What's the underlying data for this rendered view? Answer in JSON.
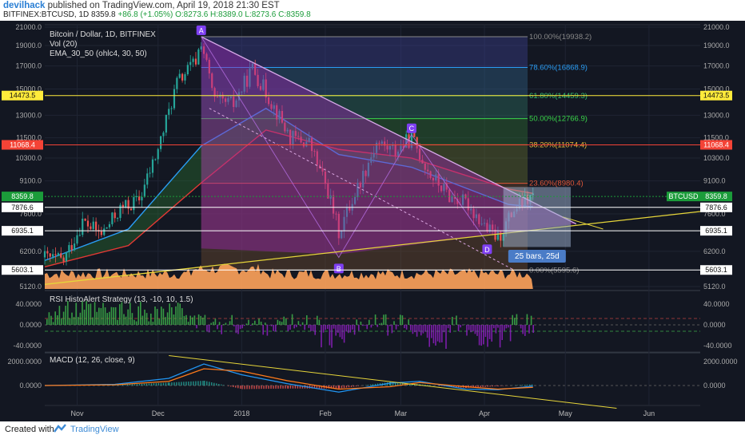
{
  "header": {
    "author": "devilhack",
    "published": "published on TradingView.com, April 19, 2018 21:30 EST",
    "symbol_line": "BITFINEX:BTCUSD, 1D 8359.8",
    "change": "+86.8 (+1.05%)",
    "ohlc": "O:8273.6 H:8389.0 L:8273.6 C:8359.8"
  },
  "legend": {
    "title": "Bitcoin / Dollar, 1D, BITFINEX",
    "vol": "Vol (20)",
    "ema": "EMA_30_50 (ohlc4, 30, 50)",
    "rsi": "RSI HistoAlert Strategy (13, -10, 10, 1.5)",
    "macd": "MACD (12, 26, close, 9)"
  },
  "footer": {
    "created_with": "Created with",
    "brand": "TradingView"
  },
  "colors": {
    "background": "#131722",
    "bull": "#26a69a",
    "bear": "#ef5350",
    "triangle_fill": "#9c27b0",
    "trendline": "#e6d53a",
    "volume": "#ffa35b",
    "ema_fast": "#2a9df4",
    "ema_slow": "#e53935",
    "macd_line": "#2196f3",
    "signal_line": "#ff7a1a",
    "last_price": "#1b9c3a"
  },
  "chart_data": [
    {
      "type": "candlestick",
      "title": "Bitcoin / Dollar, 1D, BITFINEX",
      "symbol": "BTCUSD",
      "x": [
        "Nov",
        "Dec",
        "2018",
        "Feb",
        "Mar",
        "Apr",
        "May",
        "Jun"
      ],
      "y_ticks": [
        21000,
        19000,
        17000,
        15000,
        13000,
        11500,
        10300,
        9100,
        7600,
        6200,
        5120
      ],
      "ylim": [
        5120,
        21000
      ],
      "y_scale": "log",
      "price_series": {
        "dates": [
          "2017-10-20",
          "2017-10-27",
          "2017-11-03",
          "2017-11-10",
          "2017-11-17",
          "2017-11-24",
          "2017-12-01",
          "2017-12-08",
          "2017-12-15",
          "2017-12-17",
          "2017-12-22",
          "2017-12-29",
          "2018-01-05",
          "2018-01-12",
          "2018-01-19",
          "2018-01-26",
          "2018-02-02",
          "2018-02-06",
          "2018-02-13",
          "2018-02-20",
          "2018-02-27",
          "2018-03-05",
          "2018-03-12",
          "2018-03-19",
          "2018-03-26",
          "2018-04-02",
          "2018-04-06",
          "2018-04-12",
          "2018-04-19"
        ],
        "close": [
          6000,
          5900,
          7300,
          6800,
          7800,
          8200,
          10800,
          15500,
          17500,
          19500,
          14000,
          13800,
          16800,
          14000,
          11500,
          11200,
          8600,
          6900,
          8800,
          11200,
          10700,
          11500,
          9400,
          8400,
          8000,
          7000,
          6650,
          7800,
          8359.8
        ]
      },
      "horizontal_levels": [
        {
          "label": "14473.5",
          "value": 14473.5,
          "color": "#ffeb3b"
        },
        {
          "label": "11068.4",
          "value": 11068.4,
          "color": "#f44336"
        },
        {
          "label": "8359.8",
          "value": 8359.8,
          "color": "#1b9c3a"
        },
        {
          "label": "7876.6",
          "value": 7876.6,
          "color": "#ffffff"
        },
        {
          "label": "6935.1",
          "value": 6935.1,
          "color": "#ffffff"
        },
        {
          "label": "5603.1",
          "value": 5603.1,
          "color": "#ffffff"
        }
      ],
      "fibonacci": [
        {
          "label": "100.00%(19938.2)",
          "value": 19938.2
        },
        {
          "label": "78.60%(16868.9)",
          "value": 16868.9
        },
        {
          "label": "61.80%(14459.3)",
          "value": 14459.3
        },
        {
          "label": "50.00%(12766.9)",
          "value": 12766.9
        },
        {
          "label": "38.20%(11074.4)",
          "value": 11074.4
        },
        {
          "label": "23.60%(8980.4)",
          "value": 8980.4
        },
        {
          "label": "0.00%(5595.6)",
          "value": 5595.6
        }
      ],
      "points": [
        {
          "label": "A",
          "date": "2017-12-17",
          "value": 19938.2
        },
        {
          "label": "B",
          "date": "2018-02-06",
          "value": 5900
        },
        {
          "label": "C",
          "date": "2018-03-05",
          "value": 11700
        },
        {
          "label": "D",
          "date": "2018-04-02",
          "value": 6550
        }
      ],
      "projection_label": "25 bars, 25d",
      "last_price_label": "BTCUSD",
      "last_price": "8359.8"
    },
    {
      "type": "bar",
      "title": "RSI HistoAlert Strategy (13, -10, 10, 1.5)",
      "y_ticks": [
        "40.0000",
        "0.0000",
        "-40.0000"
      ],
      "ylim": [
        -40,
        40
      ]
    },
    {
      "type": "line",
      "title": "MACD (12, 26, close, 9)",
      "y_ticks": [
        "2000.0000",
        "0.0000"
      ],
      "series": [
        {
          "name": "",
          "x": [
            "2017-10-20",
            "2017-11-15",
            "2017-12-05",
            "2017-12-18",
            "2018-01-01",
            "2018-01-18",
            "2018-02-06",
            "2018-02-25",
            "2018-03-08",
            "2018-03-25",
            "2018-04-06",
            "2018-04-19"
          ],
          "values": [
            0,
            100,
            600,
            1800,
            900,
            150,
            -550,
            200,
            350,
            -300,
            -350,
            -50
          ]
        },
        {
          "name": "",
          "x": [
            "2017-10-20",
            "2017-11-15",
            "2017-12-05",
            "2017-12-18",
            "2018-01-01",
            "2018-01-18",
            "2018-02-06",
            "2018-02-25",
            "2018-03-08",
            "2018-03-25",
            "2018-04-06",
            "2018-04-19"
          ],
          "values": [
            0,
            60,
            350,
            1400,
            1200,
            400,
            -300,
            -100,
            250,
            -100,
            -300,
            -150
          ]
        }
      ]
    }
  ]
}
